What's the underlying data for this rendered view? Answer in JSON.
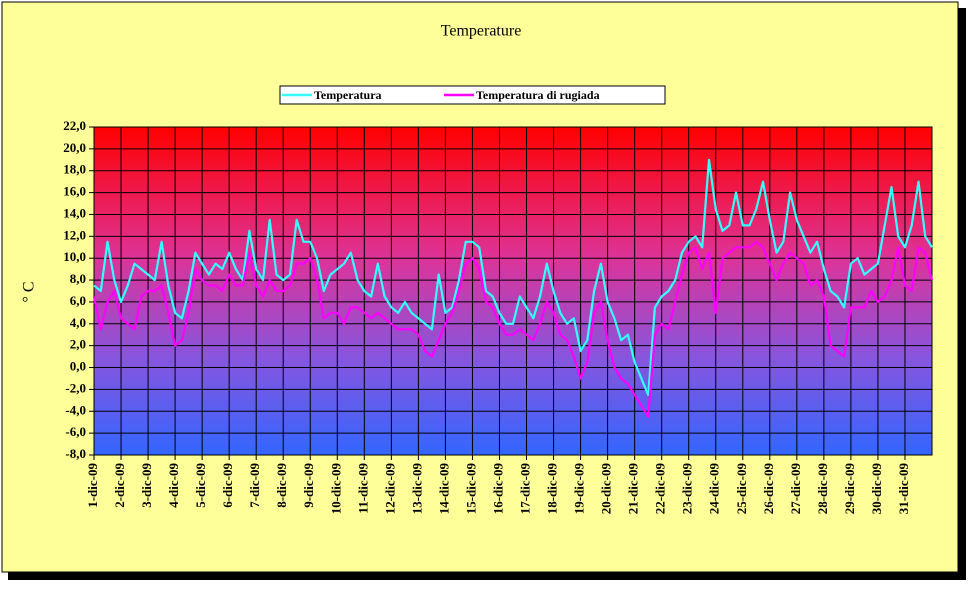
{
  "chart_data": {
    "type": "line",
    "title": "Temperature",
    "y_label": "° C",
    "x": [
      0,
      0.25,
      0.5,
      0.75,
      1,
      1.25,
      1.5,
      1.75,
      2,
      2.25,
      2.5,
      2.75,
      3,
      3.25,
      3.5,
      3.75,
      4,
      4.25,
      4.5,
      4.75,
      5,
      5.25,
      5.5,
      5.75,
      6,
      6.25,
      6.5,
      6.75,
      7,
      7.25,
      7.5,
      7.75,
      8,
      8.25,
      8.5,
      8.75,
      9,
      9.25,
      9.5,
      9.75,
      10,
      10.25,
      10.5,
      10.75,
      11,
      11.25,
      11.5,
      11.75,
      12,
      12.25,
      12.5,
      12.75,
      13,
      13.25,
      13.5,
      13.75,
      14,
      14.25,
      14.5,
      14.75,
      15,
      15.25,
      15.5,
      15.75,
      16,
      16.25,
      16.5,
      16.75,
      17,
      17.25,
      17.5,
      17.75,
      18,
      18.25,
      18.5,
      18.75,
      19,
      19.25,
      19.5,
      19.75,
      20,
      20.25,
      20.5,
      20.75,
      21,
      21.25,
      21.5,
      21.75,
      22,
      22.25,
      22.5,
      22.75,
      23,
      23.25,
      23.5,
      23.75,
      24,
      24.25,
      24.5,
      24.75,
      25,
      25.25,
      25.5,
      25.75,
      26,
      26.25,
      26.5,
      26.75,
      27,
      27.25,
      27.5,
      27.75,
      28,
      28.25,
      28.5,
      28.75,
      29,
      29.25,
      29.5,
      29.75,
      30,
      30.25,
      30.5,
      30.75,
      31
    ],
    "series": [
      {
        "name": "Temperatura",
        "color": "#33ffff",
        "values": [
          7.5,
          7.0,
          11.5,
          8.0,
          6.0,
          7.5,
          9.5,
          9.0,
          8.5,
          8.0,
          11.5,
          7.5,
          5.0,
          4.5,
          7.0,
          10.5,
          9.5,
          8.5,
          9.5,
          9.0,
          10.5,
          9.0,
          8.0,
          12.5,
          9.0,
          8.0,
          13.5,
          8.5,
          8.0,
          8.5,
          13.5,
          11.5,
          11.5,
          10.0,
          7.0,
          8.5,
          9.0,
          9.5,
          10.5,
          8.0,
          7.0,
          6.5,
          9.5,
          6.5,
          5.5,
          5.0,
          6.0,
          5.0,
          4.5,
          4.0,
          3.5,
          8.5,
          5.0,
          5.5,
          8.0,
          11.5,
          11.5,
          11.0,
          7.0,
          6.5,
          5.0,
          4.0,
          4.0,
          6.5,
          5.5,
          4.5,
          6.5,
          9.5,
          7.0,
          5.0,
          4.0,
          4.5,
          1.5,
          2.5,
          7.0,
          9.5,
          6.0,
          4.5,
          2.5,
          3.0,
          0.5,
          -1.0,
          -2.5,
          5.5,
          6.5,
          7.0,
          8.0,
          10.5,
          11.5,
          12.0,
          11.0,
          19.0,
          14.5,
          12.5,
          13.0,
          16.0,
          13.0,
          13.0,
          14.5,
          17.0,
          13.5,
          10.5,
          11.5,
          16.0,
          13.5,
          12.0,
          10.5,
          11.5,
          9.0,
          7.0,
          6.5,
          5.5,
          9.5,
          10.0,
          8.5,
          9.0,
          9.5,
          13.0,
          16.5,
          12.0,
          11.0,
          13.0,
          17.0,
          12.0,
          11.0
        ]
      },
      {
        "name": "Temperatura di rugiada",
        "color": "#ff00ff",
        "values": [
          6.5,
          3.5,
          6.0,
          7.0,
          4.5,
          4.0,
          3.5,
          6.5,
          7.0,
          7.0,
          7.5,
          5.0,
          2.0,
          2.5,
          5.0,
          9.0,
          8.0,
          7.5,
          7.5,
          7.0,
          8.5,
          7.5,
          7.5,
          10.5,
          7.5,
          6.5,
          8.0,
          7.0,
          7.0,
          7.5,
          9.5,
          9.5,
          10.0,
          8.0,
          4.5,
          5.0,
          5.0,
          4.0,
          5.5,
          5.5,
          5.0,
          4.5,
          5.0,
          4.5,
          4.0,
          3.5,
          3.5,
          3.5,
          3.0,
          1.5,
          1.0,
          2.5,
          4.0,
          5.0,
          7.0,
          9.5,
          10.0,
          9.0,
          6.0,
          5.5,
          4.0,
          3.0,
          3.0,
          3.5,
          3.0,
          2.5,
          4.0,
          6.0,
          5.0,
          3.0,
          2.5,
          1.0,
          -1.0,
          0.5,
          5.0,
          6.0,
          2.5,
          0.0,
          -1.0,
          -1.5,
          -2.5,
          -3.5,
          -4.5,
          3.0,
          4.0,
          3.5,
          6.0,
          8.5,
          10.5,
          11.0,
          9.0,
          10.5,
          5.0,
          10.0,
          10.5,
          11.0,
          11.0,
          11.0,
          11.5,
          11.0,
          9.5,
          8.0,
          9.5,
          10.5,
          10.0,
          9.5,
          7.5,
          8.0,
          6.5,
          2.0,
          1.5,
          1.0,
          5.5,
          5.5,
          5.5,
          7.0,
          6.0,
          6.5,
          8.0,
          11.0,
          7.5,
          7.0,
          11.0,
          10.5,
          8.0
        ]
      }
    ],
    "xlim": [
      0,
      31
    ],
    "xticks": [
      {
        "value": 0,
        "label": "1-dic-09"
      },
      {
        "value": 1,
        "label": "2-dic-09"
      },
      {
        "value": 2,
        "label": "3-dic-09"
      },
      {
        "value": 3,
        "label": "4-dic-09"
      },
      {
        "value": 4,
        "label": "5-dic-09"
      },
      {
        "value": 5,
        "label": "6-dic-09"
      },
      {
        "value": 6,
        "label": "7-dic-09"
      },
      {
        "value": 7,
        "label": "8-dic-09"
      },
      {
        "value": 8,
        "label": "9-dic-09"
      },
      {
        "value": 9,
        "label": "10-dic-09"
      },
      {
        "value": 10,
        "label": "11-dic-09"
      },
      {
        "value": 11,
        "label": "12-dic-09"
      },
      {
        "value": 12,
        "label": "13-dic-09"
      },
      {
        "value": 13,
        "label": "14-dic-09"
      },
      {
        "value": 14,
        "label": "15-dic-09"
      },
      {
        "value": 15,
        "label": "16-dic-09"
      },
      {
        "value": 16,
        "label": "17-dic-09"
      },
      {
        "value": 17,
        "label": "18-dic-09"
      },
      {
        "value": 18,
        "label": "19-dic-09"
      },
      {
        "value": 19,
        "label": "20-dic-09"
      },
      {
        "value": 20,
        "label": "21-dic-09"
      },
      {
        "value": 21,
        "label": "22-dic-09"
      },
      {
        "value": 22,
        "label": "23-dic-09"
      },
      {
        "value": 23,
        "label": "24-dic-09"
      },
      {
        "value": 24,
        "label": "25-dic-09"
      },
      {
        "value": 25,
        "label": "26-dic-09"
      },
      {
        "value": 26,
        "label": "27-dic-09"
      },
      {
        "value": 27,
        "label": "28-dic-09"
      },
      {
        "value": 28,
        "label": "29-dic-09"
      },
      {
        "value": 29,
        "label": "30-dic-09"
      },
      {
        "value": 30,
        "label": "31-dic-09"
      }
    ],
    "ylim": [
      -8,
      22
    ],
    "yticks": [
      {
        "value": 22,
        "label": "22,0"
      },
      {
        "value": 20,
        "label": "20,0"
      },
      {
        "value": 18,
        "label": "18,0"
      },
      {
        "value": 16,
        "label": "16,0"
      },
      {
        "value": 14,
        "label": "14,0"
      },
      {
        "value": 12,
        "label": "12,0"
      },
      {
        "value": 10,
        "label": "10,0"
      },
      {
        "value": 8,
        "label": "8,0"
      },
      {
        "value": 6,
        "label": "6,0"
      },
      {
        "value": 4,
        "label": "4,0"
      },
      {
        "value": 2,
        "label": "2,0"
      },
      {
        "value": 0,
        "label": "0,0"
      },
      {
        "value": -2,
        "label": "-2,0"
      },
      {
        "value": -4,
        "label": "-4,0"
      },
      {
        "value": -6,
        "label": "-6,0"
      },
      {
        "value": -8,
        "label": "-8,0"
      }
    ],
    "grid": true,
    "legend": "top"
  }
}
